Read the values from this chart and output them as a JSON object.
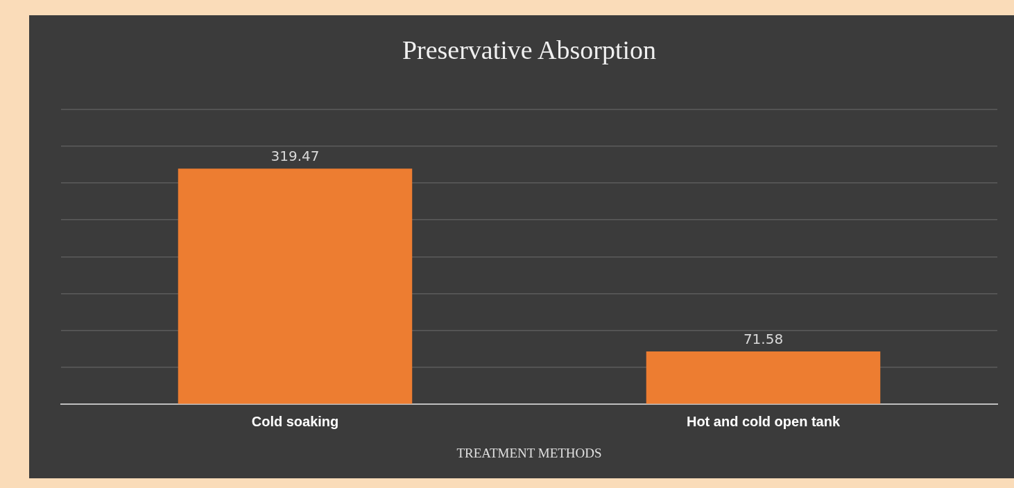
{
  "chart_data": {
    "type": "bar",
    "title": "Preservative Absorption",
    "xlabel": "TREATMENT METHODS",
    "categories": [
      "Cold soaking",
      "Hot and cold open tank"
    ],
    "values": [
      319.47,
      71.58
    ],
    "color": "#ed7d31",
    "ylim": [
      0,
      400
    ],
    "yticks": [
      {
        "value": 0,
        "label": null
      },
      {
        "value": 50,
        "label": null
      },
      {
        "value": 100,
        "label": null
      },
      {
        "value": 150,
        "label": null
      },
      {
        "value": 200,
        "label": null
      },
      {
        "value": 250,
        "label": null
      },
      {
        "value": 300,
        "label": null
      },
      {
        "value": 350,
        "label": null
      },
      {
        "value": 400,
        "label": null
      }
    ],
    "tick_labels": "x",
    "grid": "y",
    "data_labels": true
  }
}
